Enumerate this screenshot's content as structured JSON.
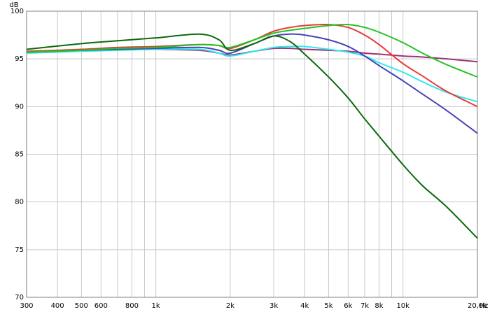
{
  "chart_data": {
    "type": "line",
    "x_label": "Hz",
    "y_label": "dB",
    "xscale": "log",
    "grid": true,
    "xlim": [
      300,
      20000
    ],
    "ylim": [
      70,
      100
    ],
    "xticks": [
      300,
      400,
      500,
      600,
      800,
      {
        "value": 1000,
        "label": "1k"
      },
      {
        "value": 2000,
        "label": "2k"
      },
      {
        "value": 3000,
        "label": "3k"
      },
      {
        "value": 4000,
        "label": "4k"
      },
      {
        "value": 5000,
        "label": "5k"
      },
      {
        "value": 6000,
        "label": "6k"
      },
      {
        "value": 7000,
        "label": "7k"
      },
      {
        "value": 8000,
        "label": "8k"
      },
      {
        "value": 10000,
        "label": "10k"
      },
      {
        "value": 20000,
        "label": "20,0k"
      }
    ],
    "x_minor_ticks": [
      700,
      900,
      9000
    ],
    "yticks": [
      70,
      75,
      80,
      85,
      90,
      95,
      100
    ],
    "x": [
      300,
      500,
      700,
      1000,
      1500,
      1800,
      2000,
      2500,
      3000,
      3500,
      4000,
      5000,
      6000,
      7000,
      8000,
      10000,
      12000,
      15000,
      20000
    ],
    "series": [
      {
        "color": "#a0307a",
        "values": [
          95.7,
          95.9,
          96.0,
          96.0,
          95.9,
          95.6,
          95.4,
          95.8,
          96.1,
          96.1,
          96.0,
          95.9,
          95.8,
          95.6,
          95.5,
          95.3,
          95.2,
          95.0,
          94.7
        ]
      },
      {
        "color": "#30e8f0",
        "values": [
          95.6,
          95.8,
          95.9,
          96.0,
          96.0,
          95.6,
          95.3,
          95.8,
          96.2,
          96.3,
          96.3,
          96.0,
          95.7,
          95.3,
          94.6,
          93.6,
          92.6,
          91.5,
          90.5
        ]
      },
      {
        "color": "#4444b8",
        "values": [
          95.7,
          95.9,
          96.0,
          96.1,
          96.2,
          95.9,
          95.6,
          96.6,
          97.4,
          97.6,
          97.5,
          97.0,
          96.3,
          95.3,
          94.3,
          92.7,
          91.3,
          89.6,
          87.2
        ]
      },
      {
        "color": "#e83a3a",
        "values": [
          95.8,
          96.0,
          96.2,
          96.3,
          96.5,
          96.4,
          96.1,
          97.0,
          97.9,
          98.3,
          98.5,
          98.6,
          98.3,
          97.5,
          96.5,
          94.5,
          93.2,
          91.6,
          90.0
        ]
      },
      {
        "color": "#22c422",
        "values": [
          95.7,
          95.9,
          96.1,
          96.2,
          96.5,
          96.4,
          96.2,
          97.0,
          97.7,
          98.0,
          98.2,
          98.5,
          98.6,
          98.3,
          97.8,
          96.7,
          95.6,
          94.4,
          93.1
        ]
      },
      {
        "color": "#0c6a0c",
        "values": [
          96.0,
          96.6,
          96.9,
          97.2,
          97.6,
          97.0,
          95.9,
          96.6,
          97.4,
          96.8,
          95.5,
          93.1,
          90.9,
          88.7,
          86.9,
          83.9,
          81.7,
          79.5,
          76.2
        ]
      }
    ]
  }
}
